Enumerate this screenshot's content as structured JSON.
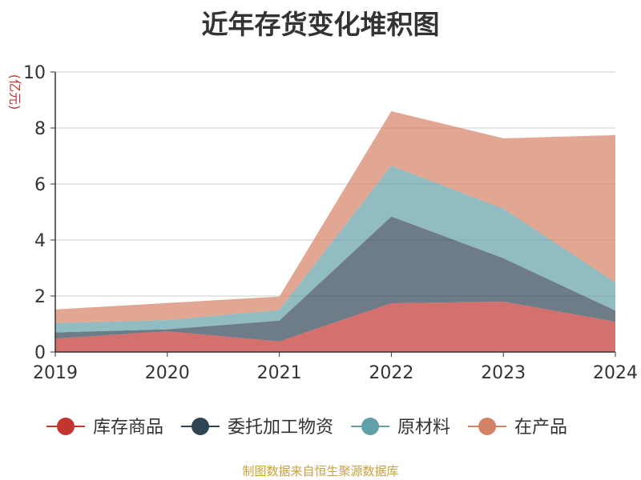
{
  "chart_data": {
    "type": "area",
    "stacked": true,
    "title": "近年存货变化堆积图",
    "ylabel": "(亿元)",
    "xlabel": "",
    "ylim": [
      0,
      10
    ],
    "yticks": [
      0,
      2,
      4,
      6,
      8,
      10
    ],
    "categories": [
      "2019",
      "2020",
      "2021",
      "2022",
      "2023",
      "2024"
    ],
    "grid": true,
    "legend_position": "bottom",
    "series": [
      {
        "name": "库存商品",
        "color": "#c23531",
        "values": [
          0.48,
          0.74,
          0.38,
          1.74,
          1.8,
          1.08
        ]
      },
      {
        "name": "委托加工物资",
        "color": "#2f4554",
        "values": [
          0.22,
          0.07,
          0.74,
          3.1,
          1.55,
          0.4
        ]
      },
      {
        "name": "原材料",
        "color": "#61a0a8",
        "values": [
          0.33,
          0.33,
          0.38,
          1.81,
          1.77,
          1.0
        ]
      },
      {
        "name": "在产品",
        "color": "#d48265",
        "values": [
          0.49,
          0.61,
          0.48,
          1.95,
          2.51,
          5.27
        ]
      }
    ]
  },
  "source_note": "制图数据来自恒生聚源数据库"
}
